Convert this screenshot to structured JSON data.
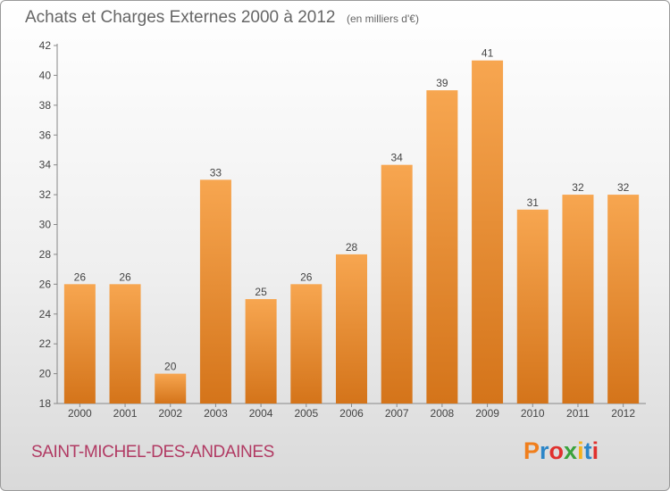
{
  "header": {
    "title": "Achats et Charges Externes 2000 à 2012",
    "subtitle": "(en milliers d'€)"
  },
  "footer": {
    "commune": "SAINT-MICHEL-DES-ANDAINES",
    "logo_text": "Proxiti",
    "logo_colors": [
      "#f07e1c",
      "#2c86c8",
      "#e0312e",
      "#3aa23c",
      "#f5b21c",
      "#2c86c8",
      "#e0312e"
    ]
  },
  "colors": {
    "bar_top": "#f7a650",
    "bar_bottom": "#d4741a",
    "label_text": "#444444",
    "axis": "#888888"
  },
  "chart_data": {
    "type": "bar",
    "title": "Achats et Charges Externes 2000 à 2012",
    "subtitle": "(en milliers d'€)",
    "categories": [
      "2000",
      "2001",
      "2002",
      "2003",
      "2004",
      "2005",
      "2006",
      "2007",
      "2008",
      "2009",
      "2010",
      "2011",
      "2012"
    ],
    "values": [
      26,
      26,
      20,
      33,
      25,
      26,
      28,
      34,
      39,
      41,
      31,
      32,
      32
    ],
    "ylim": [
      18,
      42
    ],
    "yticks": [
      18,
      20,
      22,
      24,
      26,
      28,
      30,
      32,
      34,
      36,
      38,
      40,
      42
    ],
    "grid": false,
    "data_labels": true
  }
}
